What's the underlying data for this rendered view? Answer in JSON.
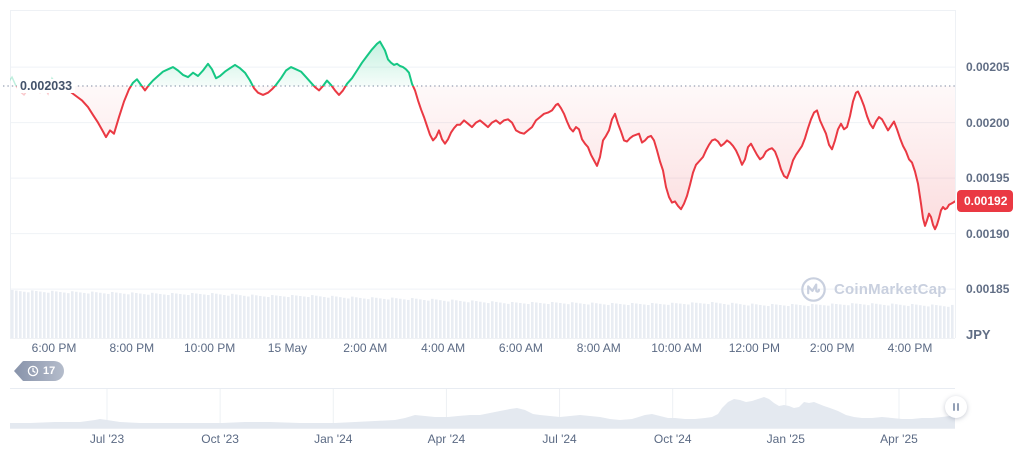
{
  "colors": {
    "green": "#16c784",
    "red": "#ea3943",
    "grid": "#eff2f6",
    "axis_text": "#616e85",
    "baseline_dotted": "#a9b1c1",
    "histogram_bar": "#e9edf3",
    "minimap_fill": "#e4e9f0",
    "watermark": "#c9d0df",
    "badge_bg": "#ea3943"
  },
  "watermark": {
    "text": "CoinMarketCap",
    "icon": "coinmarketcap-logo-icon"
  },
  "history_badge": {
    "count": "17",
    "icon": "history-clock-icon"
  },
  "scroll_handle": {
    "icon": "drag-handle-icon"
  },
  "chart_data": {
    "type": "line",
    "style": "baseline (green above / red below baseline)",
    "baseline": {
      "label": "0.002033",
      "price_e6": 2033
    },
    "current_price": {
      "label": "0.00192"
    },
    "y_axis": {
      "currency_label": "JPY",
      "ticks": [
        {
          "label": "0.00205",
          "value_e6": 2050
        },
        {
          "label": "0.00200",
          "value_e6": 2000
        },
        {
          "label": "0.00195",
          "value_e6": 1950
        },
        {
          "label": "0.00190",
          "value_e6": 1900
        },
        {
          "label": "0.00185",
          "value_e6": 1850
        }
      ]
    },
    "x_axis": {
      "labels": [
        "6:00 PM",
        "8:00 PM",
        "10:00 PM",
        "15 May",
        "2:00 AM",
        "4:00 AM",
        "6:00 AM",
        "8:00 AM",
        "10:00 AM",
        "12:00 PM",
        "2:00 PM",
        "4:00 PM"
      ]
    },
    "series_note": "pairs of [x position px, price in 1e-6 JPY]",
    "points": [
      [
        70,
        2028
      ],
      [
        76,
        2024
      ],
      [
        82,
        2020
      ],
      [
        88,
        2014
      ],
      [
        93,
        2007
      ],
      [
        98,
        2000
      ],
      [
        103,
        1992
      ],
      [
        106,
        1987
      ],
      [
        110,
        1993
      ],
      [
        114,
        1990
      ],
      [
        119,
        2005
      ],
      [
        124,
        2019
      ],
      [
        129,
        2030
      ],
      [
        133,
        2036
      ],
      [
        137,
        2039
      ],
      [
        141,
        2034
      ],
      [
        145,
        2029
      ],
      [
        149,
        2034
      ],
      [
        153,
        2038
      ],
      [
        158,
        2042
      ],
      [
        163,
        2046
      ],
      [
        168,
        2048
      ],
      [
        173,
        2050
      ],
      [
        178,
        2047
      ],
      [
        183,
        2043
      ],
      [
        188,
        2041
      ],
      [
        193,
        2045
      ],
      [
        198,
        2042
      ],
      [
        203,
        2047
      ],
      [
        208,
        2053
      ],
      [
        212,
        2048
      ],
      [
        216,
        2040
      ],
      [
        220,
        2042
      ],
      [
        225,
        2046
      ],
      [
        230,
        2049
      ],
      [
        235,
        2052
      ],
      [
        240,
        2049
      ],
      [
        245,
        2045
      ],
      [
        250,
        2038
      ],
      [
        254,
        2031
      ],
      [
        258,
        2027
      ],
      [
        263,
        2025
      ],
      [
        268,
        2027
      ],
      [
        272,
        2030
      ],
      [
        276,
        2034
      ],
      [
        281,
        2040
      ],
      [
        286,
        2047
      ],
      [
        291,
        2050
      ],
      [
        296,
        2048
      ],
      [
        301,
        2046
      ],
      [
        306,
        2041
      ],
      [
        311,
        2036
      ],
      [
        315,
        2032
      ],
      [
        319,
        2029
      ],
      [
        323,
        2033
      ],
      [
        327,
        2038
      ],
      [
        331,
        2034
      ],
      [
        335,
        2029
      ],
      [
        339,
        2025
      ],
      [
        343,
        2029
      ],
      [
        347,
        2035
      ],
      [
        352,
        2040
      ],
      [
        357,
        2047
      ],
      [
        362,
        2054
      ],
      [
        367,
        2060
      ],
      [
        372,
        2066
      ],
      [
        377,
        2071
      ],
      [
        380,
        2073
      ],
      [
        385,
        2065
      ],
      [
        388,
        2057
      ],
      [
        391,
        2054
      ],
      [
        394,
        2052
      ],
      [
        397,
        2053
      ],
      [
        400,
        2051
      ],
      [
        403,
        2050
      ],
      [
        406,
        2048
      ],
      [
        409,
        2045
      ],
      [
        412,
        2035
      ],
      [
        415,
        2029
      ],
      [
        418,
        2020
      ],
      [
        421,
        2012
      ],
      [
        424,
        2005
      ],
      [
        427,
        1997
      ],
      [
        430,
        1989
      ],
      [
        433,
        1984
      ],
      [
        436,
        1987
      ],
      [
        439,
        1993
      ],
      [
        442,
        1985
      ],
      [
        445,
        1981
      ],
      [
        448,
        1985
      ],
      [
        451,
        1991
      ],
      [
        454,
        1995
      ],
      [
        457,
        1998
      ],
      [
        460,
        1998
      ],
      [
        464,
        2002
      ],
      [
        468,
        1999
      ],
      [
        472,
        1996
      ],
      [
        476,
        2000
      ],
      [
        480,
        2002
      ],
      [
        484,
        1999
      ],
      [
        488,
        1996
      ],
      [
        492,
        2000
      ],
      [
        496,
        2002
      ],
      [
        500,
        1999
      ],
      [
        504,
        2002
      ],
      [
        508,
        2003
      ],
      [
        512,
        2000
      ],
      [
        516,
        1993
      ],
      [
        520,
        1991
      ],
      [
        524,
        1990
      ],
      [
        528,
        1993
      ],
      [
        532,
        1996
      ],
      [
        536,
        2002
      ],
      [
        540,
        2005
      ],
      [
        544,
        2008
      ],
      [
        548,
        2009
      ],
      [
        552,
        2011
      ],
      [
        556,
        2016
      ],
      [
        558,
        2017
      ],
      [
        561,
        2013
      ],
      [
        564,
        2008
      ],
      [
        567,
        2001
      ],
      [
        570,
        1995
      ],
      [
        573,
        1992
      ],
      [
        576,
        1996
      ],
      [
        579,
        1994
      ],
      [
        582,
        1985
      ],
      [
        585,
        1981
      ],
      [
        588,
        1978
      ],
      [
        591,
        1971
      ],
      [
        594,
        1966
      ],
      [
        597,
        1961
      ],
      [
        600,
        1969
      ],
      [
        603,
        1984
      ],
      [
        606,
        1988
      ],
      [
        609,
        1993
      ],
      [
        612,
        2003
      ],
      [
        615,
        2008
      ],
      [
        618,
        1999
      ],
      [
        621,
        1992
      ],
      [
        624,
        1984
      ],
      [
        627,
        1983
      ],
      [
        630,
        1986
      ],
      [
        633,
        1988
      ],
      [
        636,
        1989
      ],
      [
        639,
        1990
      ],
      [
        642,
        1982
      ],
      [
        645,
        1984
      ],
      [
        648,
        1987
      ],
      [
        651,
        1988
      ],
      [
        654,
        1984
      ],
      [
        657,
        1975
      ],
      [
        660,
        1965
      ],
      [
        663,
        1957
      ],
      [
        666,
        1942
      ],
      [
        669,
        1933
      ],
      [
        672,
        1928
      ],
      [
        675,
        1929
      ],
      [
        678,
        1925
      ],
      [
        681,
        1922
      ],
      [
        684,
        1927
      ],
      [
        687,
        1934
      ],
      [
        690,
        1944
      ],
      [
        693,
        1955
      ],
      [
        696,
        1962
      ],
      [
        699,
        1965
      ],
      [
        703,
        1969
      ],
      [
        706,
        1975
      ],
      [
        709,
        1980
      ],
      [
        712,
        1984
      ],
      [
        715,
        1985
      ],
      [
        718,
        1983
      ],
      [
        721,
        1979
      ],
      [
        724,
        1981
      ],
      [
        727,
        1984
      ],
      [
        730,
        1982
      ],
      [
        733,
        1979
      ],
      [
        736,
        1975
      ],
      [
        739,
        1969
      ],
      [
        742,
        1962
      ],
      [
        745,
        1967
      ],
      [
        748,
        1978
      ],
      [
        751,
        1981
      ],
      [
        754,
        1976
      ],
      [
        757,
        1971
      ],
      [
        760,
        1967
      ],
      [
        763,
        1969
      ],
      [
        766,
        1974
      ],
      [
        769,
        1976
      ],
      [
        772,
        1977
      ],
      [
        775,
        1974
      ],
      [
        778,
        1967
      ],
      [
        781,
        1958
      ],
      [
        784,
        1952
      ],
      [
        787,
        1950
      ],
      [
        790,
        1957
      ],
      [
        793,
        1966
      ],
      [
        796,
        1971
      ],
      [
        799,
        1975
      ],
      [
        802,
        1979
      ],
      [
        805,
        1986
      ],
      [
        808,
        1995
      ],
      [
        811,
        2003
      ],
      [
        814,
        2009
      ],
      [
        817,
        2011
      ],
      [
        820,
        2002
      ],
      [
        823,
        1996
      ],
      [
        826,
        1990
      ],
      [
        829,
        1980
      ],
      [
        832,
        1976
      ],
      [
        835,
        1984
      ],
      [
        838,
        1994
      ],
      [
        841,
        1999
      ],
      [
        844,
        1994
      ],
      [
        847,
        1996
      ],
      [
        850,
        2006
      ],
      [
        853,
        2019
      ],
      [
        856,
        2027
      ],
      [
        858,
        2028
      ],
      [
        861,
        2022
      ],
      [
        864,
        2015
      ],
      [
        867,
        2006
      ],
      [
        870,
        1999
      ],
      [
        873,
        1995
      ],
      [
        876,
        2001
      ],
      [
        879,
        2005
      ],
      [
        882,
        2003
      ],
      [
        885,
        1998
      ],
      [
        888,
        1993
      ],
      [
        891,
        1997
      ],
      [
        894,
        2001
      ],
      [
        897,
        1994
      ],
      [
        900,
        1986
      ],
      [
        903,
        1979
      ],
      [
        906,
        1974
      ],
      [
        909,
        1967
      ],
      [
        912,
        1964
      ],
      [
        915,
        1956
      ],
      [
        918,
        1945
      ],
      [
        921,
        1927
      ],
      [
        923,
        1914
      ],
      [
        925,
        1907
      ],
      [
        927,
        1912
      ],
      [
        929,
        1918
      ],
      [
        931,
        1915
      ],
      [
        933,
        1908
      ],
      [
        935,
        1904
      ],
      [
        937,
        1908
      ],
      [
        939,
        1914
      ],
      [
        941,
        1921
      ],
      [
        943,
        1924
      ],
      [
        945,
        1922
      ],
      [
        947,
        1923
      ],
      [
        949,
        1926
      ],
      [
        951,
        1927
      ],
      [
        953,
        1928
      ],
      [
        955,
        1929
      ]
    ],
    "pre_session_points": [
      [
        8,
        2036
      ],
      [
        12,
        2041
      ],
      [
        16,
        2033
      ],
      [
        20,
        2028
      ],
      [
        24,
        2025
      ],
      [
        28,
        2030
      ],
      [
        32,
        2034
      ],
      [
        36,
        2030
      ],
      [
        40,
        2027
      ],
      [
        44,
        2032
      ],
      [
        48,
        2026
      ],
      [
        52,
        2040
      ],
      [
        56,
        2035
      ],
      [
        60,
        2030
      ],
      [
        64,
        2028
      ],
      [
        70,
        2028
      ]
    ],
    "histogram_band": {
      "note": "faded volume-style band, pairs [x px, top y px], bars fall to y=338",
      "anchors": [
        [
          10,
          291
        ],
        [
          60,
          292
        ],
        [
          110,
          293
        ],
        [
          160,
          294
        ],
        [
          210,
          294
        ],
        [
          260,
          296
        ],
        [
          310,
          296
        ],
        [
          360,
          298
        ],
        [
          410,
          299
        ],
        [
          460,
          301
        ],
        [
          510,
          303
        ],
        [
          560,
          303
        ],
        [
          610,
          304
        ],
        [
          660,
          304
        ],
        [
          710,
          303
        ],
        [
          760,
          305
        ],
        [
          810,
          305
        ],
        [
          860,
          304
        ],
        [
          910,
          305
        ],
        [
          955,
          306
        ]
      ]
    },
    "minimap": {
      "labels": [
        "Jul '23",
        "Oct '23",
        "Jan '24",
        "Apr '24",
        "Jul '24",
        "Oct '24",
        "Jan '25",
        "Apr '25"
      ],
      "profile_note": "pairs [x px, height px above minimap bottom]",
      "profile": [
        [
          10,
          5
        ],
        [
          30,
          5
        ],
        [
          55,
          6
        ],
        [
          80,
          6
        ],
        [
          95,
          8
        ],
        [
          100,
          9
        ],
        [
          107,
          8
        ],
        [
          120,
          6
        ],
        [
          140,
          5
        ],
        [
          170,
          5
        ],
        [
          200,
          5
        ],
        [
          222,
          5
        ],
        [
          245,
          6
        ],
        [
          270,
          6
        ],
        [
          300,
          5
        ],
        [
          320,
          5
        ],
        [
          335,
          5
        ],
        [
          355,
          6
        ],
        [
          375,
          7
        ],
        [
          395,
          8
        ],
        [
          405,
          10
        ],
        [
          415,
          13
        ],
        [
          425,
          12
        ],
        [
          435,
          11
        ],
        [
          448,
          11
        ],
        [
          458,
          12
        ],
        [
          470,
          13
        ],
        [
          480,
          13
        ],
        [
          490,
          15
        ],
        [
          500,
          17
        ],
        [
          510,
          19
        ],
        [
          517,
          20
        ],
        [
          525,
          18
        ],
        [
          533,
          14
        ],
        [
          540,
          13
        ],
        [
          550,
          12
        ],
        [
          560,
          11
        ],
        [
          570,
          12
        ],
        [
          580,
          13
        ],
        [
          590,
          12
        ],
        [
          600,
          11
        ],
        [
          610,
          9
        ],
        [
          620,
          8
        ],
        [
          632,
          9
        ],
        [
          645,
          13
        ],
        [
          652,
          14
        ],
        [
          660,
          12
        ],
        [
          668,
          10
        ],
        [
          675,
          10
        ],
        [
          685,
          9
        ],
        [
          695,
          9
        ],
        [
          705,
          10
        ],
        [
          712,
          11
        ],
        [
          718,
          14
        ],
        [
          722,
          20
        ],
        [
          728,
          26
        ],
        [
          734,
          29
        ],
        [
          740,
          28
        ],
        [
          746,
          26
        ],
        [
          752,
          27
        ],
        [
          758,
          29
        ],
        [
          764,
          31
        ],
        [
          769,
          29
        ],
        [
          774,
          25
        ],
        [
          779,
          22
        ],
        [
          784,
          23
        ],
        [
          789,
          22
        ],
        [
          794,
          20
        ],
        [
          799,
          21
        ],
        [
          804,
          26
        ],
        [
          809,
          25
        ],
        [
          814,
          26
        ],
        [
          819,
          24
        ],
        [
          824,
          22
        ],
        [
          830,
          20
        ],
        [
          838,
          17
        ],
        [
          846,
          13
        ],
        [
          854,
          11
        ],
        [
          862,
          10
        ],
        [
          872,
          10
        ],
        [
          882,
          11
        ],
        [
          892,
          10
        ],
        [
          902,
          9
        ],
        [
          912,
          9
        ],
        [
          922,
          10
        ],
        [
          932,
          10
        ],
        [
          942,
          11
        ],
        [
          950,
          12
        ],
        [
          955,
          13
        ]
      ]
    }
  }
}
